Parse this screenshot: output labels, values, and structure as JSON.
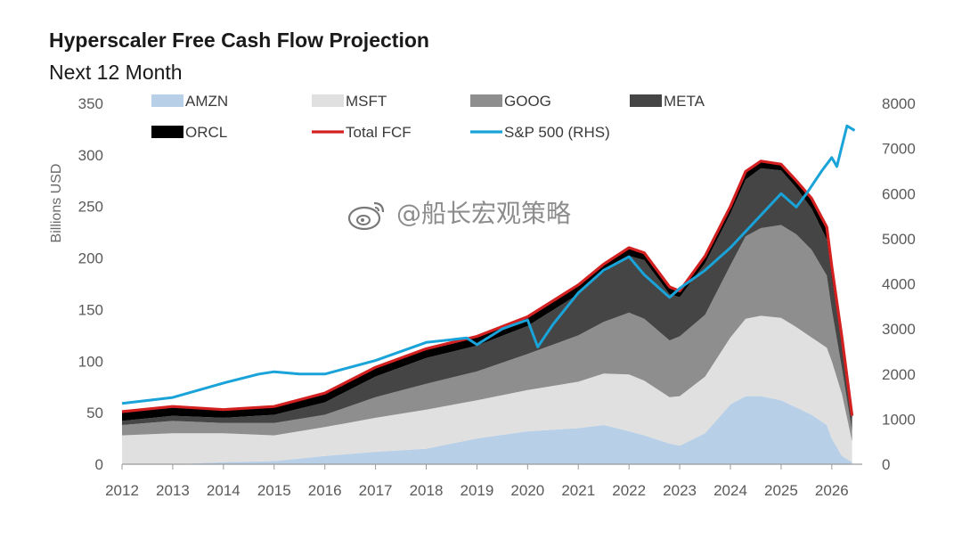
{
  "header": {
    "title": "Hyperscaler Free Cash Flow Projection",
    "subtitle": "Next 12 Month"
  },
  "watermark": {
    "text": "@船长宏观策略",
    "icon": "weibo-icon"
  },
  "chart_data": {
    "type": "area",
    "ylabel": "Billions USD",
    "y2label": "",
    "ylim": [
      0,
      350
    ],
    "y2lim": [
      0,
      8000
    ],
    "yticks": [
      0,
      50,
      100,
      150,
      200,
      250,
      300,
      350
    ],
    "y2ticks": [
      0,
      1000,
      2000,
      3000,
      4000,
      5000,
      6000,
      7000,
      8000
    ],
    "xlim": [
      2012,
      2026.6
    ],
    "xticks": [
      "2012",
      "2013",
      "2014",
      "2015",
      "2016",
      "2017",
      "2018",
      "2019",
      "2020",
      "2021",
      "2022",
      "2023",
      "2024",
      "2025",
      "2026"
    ],
    "legend_position": "top",
    "grid": false,
    "x": [
      2012,
      2013,
      2014,
      2015,
      2016,
      2017,
      2018,
      2019,
      2020,
      2021,
      2021.5,
      2022,
      2022.3,
      2022.8,
      2023,
      2023.5,
      2024,
      2024.3,
      2024.6,
      2025,
      2025.3,
      2025.6,
      2025.9,
      2026,
      2026.2,
      2026.4
    ],
    "series": [
      {
        "name": "AMZN",
        "kind": "stack",
        "color": "#b8cfe8",
        "values": [
          0,
          0,
          2,
          3,
          8,
          12,
          15,
          25,
          32,
          35,
          38,
          32,
          28,
          20,
          18,
          30,
          58,
          66,
          66,
          62,
          55,
          48,
          38,
          25,
          8,
          2
        ]
      },
      {
        "name": "MSFT",
        "kind": "stack",
        "color": "#e0e0e0",
        "values": [
          28,
          30,
          28,
          25,
          28,
          33,
          38,
          37,
          40,
          45,
          50,
          55,
          53,
          45,
          48,
          55,
          65,
          75,
          78,
          80,
          78,
          75,
          75,
          75,
          60,
          20
        ]
      },
      {
        "name": "GOOG",
        "kind": "stack",
        "color": "#8e8e8e",
        "values": [
          10,
          12,
          10,
          12,
          12,
          20,
          25,
          28,
          35,
          45,
          50,
          60,
          60,
          55,
          58,
          60,
          70,
          80,
          85,
          90,
          90,
          85,
          70,
          50,
          25,
          10
        ]
      },
      {
        "name": "META",
        "kind": "stack",
        "color": "#454545",
        "values": [
          4,
          5,
          5,
          8,
          12,
          20,
          25,
          25,
          27,
          40,
          48,
          55,
          57,
          45,
          38,
          50,
          50,
          55,
          58,
          53,
          45,
          40,
          35,
          30,
          22,
          10
        ]
      },
      {
        "name": "ORCL",
        "kind": "stack",
        "color": "#000000",
        "values": [
          9,
          9,
          8,
          8,
          9,
          9,
          9,
          9,
          9,
          9,
          8,
          8,
          7,
          7,
          6,
          7,
          7,
          8,
          7,
          6,
          7,
          10,
          12,
          12,
          8,
          5
        ]
      },
      {
        "name": "Total FCF",
        "kind": "line",
        "color": "#d32020",
        "values": [
          51,
          56,
          53,
          56,
          69,
          94,
          112,
          124,
          143,
          174,
          194,
          210,
          205,
          172,
          168,
          202,
          250,
          284,
          294,
          291,
          275,
          258,
          230,
          192,
          123,
          47
        ]
      },
      {
        "name": "S&P 500 (RHS)",
        "kind": "line-rhs",
        "color": "#1aa3d8",
        "x": [
          2012,
          2013,
          2014,
          2014.7,
          2015,
          2015.5,
          2016,
          2017,
          2018,
          2018.8,
          2019,
          2019.5,
          2020,
          2020.2,
          2020.5,
          2021,
          2021.5,
          2022,
          2022.3,
          2022.8,
          2023,
          2023.5,
          2024,
          2024.5,
          2025,
          2025.3,
          2025.5,
          2025.8,
          2026,
          2026.1,
          2026.3,
          2026.45
        ],
        "values": [
          1350,
          1480,
          1800,
          2000,
          2050,
          2000,
          2000,
          2300,
          2700,
          2800,
          2650,
          3000,
          3200,
          2600,
          3100,
          3800,
          4300,
          4600,
          4200,
          3700,
          3900,
          4300,
          4800,
          5400,
          6000,
          5700,
          6000,
          6500,
          6800,
          6600,
          7500,
          7400
        ]
      }
    ]
  }
}
